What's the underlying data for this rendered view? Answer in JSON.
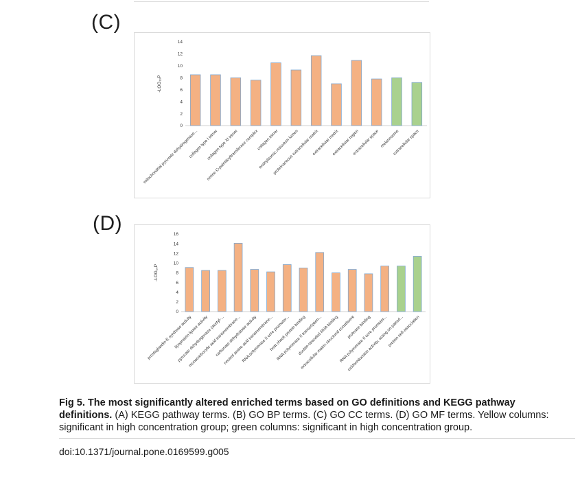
{
  "panels": [
    {
      "label": "(C)"
    },
    {
      "label": "(D)"
    }
  ],
  "caption": {
    "bold": "Fig 5. The most significantly altered enriched terms based on GO definitions and KEGG pathway definitions.",
    "rest": " (A) KEGG pathway terms. (B) GO BP terms. (C) GO CC terms. (D) GO MF terms. Yellow columns: significant in high concentration group; green columns: significant in high concentration group."
  },
  "doi": "doi:10.1371/journal.pone.0169599.g005",
  "colors": {
    "orange": "#f4b183",
    "green": "#a9d18e",
    "outline": "#7fa7cf",
    "axis": "#d0d0d0"
  },
  "chart_data": [
    {
      "type": "bar",
      "panel": "(C)",
      "ylabel": "-LOG₁₀P",
      "ylim": [
        0,
        14
      ],
      "yticks": [
        0,
        2,
        4,
        6,
        8,
        10,
        12,
        14
      ],
      "categories": [
        "mitochondrial pyruvate dehydrogenase...",
        "collagen type I trimer",
        "collagen type XI trimer",
        "serine C-palmitoyltransferase complex",
        "collagen trimer",
        "endoplasmic reticulum lumen",
        "proteinaceous extracellular matrix",
        "extracellular matrix",
        "extracellular region",
        "extracellular space",
        "melanosome",
        "extracellular space"
      ],
      "values": [
        8.5,
        8.5,
        8.0,
        7.6,
        10.5,
        9.3,
        11.7,
        7.0,
        10.9,
        7.8,
        8.0,
        7.2
      ],
      "colors": [
        "orange",
        "orange",
        "orange",
        "orange",
        "orange",
        "orange",
        "orange",
        "orange",
        "orange",
        "orange",
        "green",
        "green"
      ],
      "grid": false
    },
    {
      "type": "bar",
      "panel": "(D)",
      "ylabel": "-LOG₁₀P",
      "ylim": [
        0,
        16
      ],
      "yticks": [
        0,
        2,
        4,
        6,
        8,
        10,
        12,
        14,
        16
      ],
      "categories": [
        "prostaglandin-E synthase activity",
        "lipoprotein lipase activity",
        "pyruvate dehydrogenase (acetyl-...",
        "monocarboxylic acid transmembrane...",
        "carbonate dehydratase activity",
        "neutral amino acid transmembrane...",
        "RNA polymerase II core promoter...",
        "heat shock protein binding",
        "RNA polymerase II transcription...",
        "double-stranded RNA binding",
        "extracellular matrix structural constituent",
        "protease binding",
        "RNA polymerase II core promoter...",
        "oxidoreductase activity, acting on paired...",
        "protein self-association"
      ],
      "values": [
        9.1,
        8.5,
        8.5,
        14.1,
        8.7,
        8.2,
        9.7,
        9.0,
        12.2,
        8.0,
        8.7,
        7.8,
        9.4,
        9.4,
        11.4
      ],
      "colors": [
        "orange",
        "orange",
        "orange",
        "orange",
        "orange",
        "orange",
        "orange",
        "orange",
        "orange",
        "orange",
        "orange",
        "orange",
        "orange",
        "green",
        "green"
      ],
      "grid": false
    }
  ]
}
